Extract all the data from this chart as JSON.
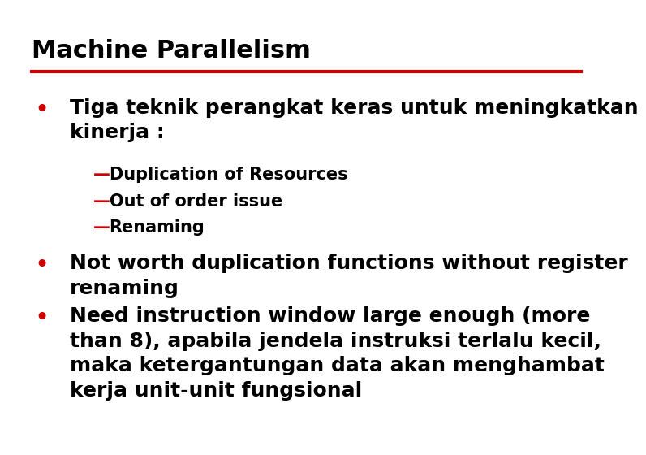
{
  "title": "Machine Parallelism",
  "title_color": "#000000",
  "title_fontsize": 22,
  "title_fontweight": "bold",
  "title_font": "Arial",
  "separator_color": "#CC0000",
  "background_color": "#FFFFFF",
  "bullet_color": "#CC0000",
  "dash_color": "#CC0000",
  "text_color": "#000000",
  "bullet_fontsize": 18,
  "sub_fontsize": 15,
  "bullets": [
    {
      "text": "Tiga teknik perangkat keras untuk meningkatkan\nkinerja :",
      "subitems": [
        "—Duplication of Resources",
        "—Out of order issue",
        "—Renaming"
      ]
    },
    {
      "text": "Not worth duplication functions without register\nrenaming",
      "subitems": []
    },
    {
      "text": "Need instruction window large enough (more\nthan 8), apabila jendela instruksi terlalu kecil,\nmaka ketergantungan data akan menghambat\nkerja unit-unit fungsional",
      "subitems": []
    }
  ]
}
